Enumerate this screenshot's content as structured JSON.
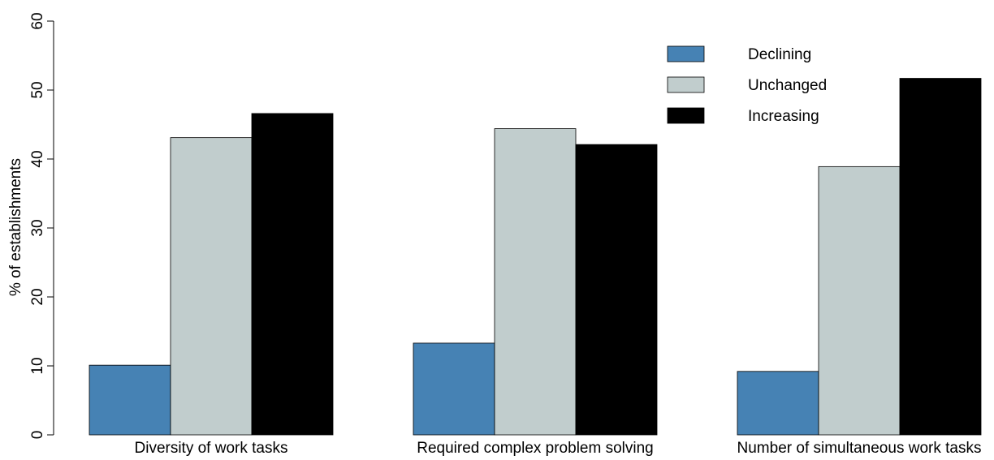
{
  "chart_data": {
    "type": "bar",
    "title": "",
    "xlabel": "",
    "ylabel": "% of establishments",
    "ylim": [
      0,
      60
    ],
    "yticks": [
      0,
      10,
      20,
      30,
      40,
      50,
      60
    ],
    "grid": false,
    "legend_position": "top-right",
    "categories": [
      "Diversity of work tasks",
      "Required complex problem solving",
      "Number of simultaneous work tasks"
    ],
    "series": [
      {
        "name": "Declining",
        "color": "#4682b4",
        "values": [
          10.1,
          13.3,
          9.2
        ]
      },
      {
        "name": "Unchanged",
        "color": "#c1cdcd",
        "values": [
          43.1,
          44.4,
          38.9
        ]
      },
      {
        "name": "Increasing",
        "color": "#000000",
        "values": [
          46.6,
          42.1,
          51.7
        ]
      }
    ]
  }
}
